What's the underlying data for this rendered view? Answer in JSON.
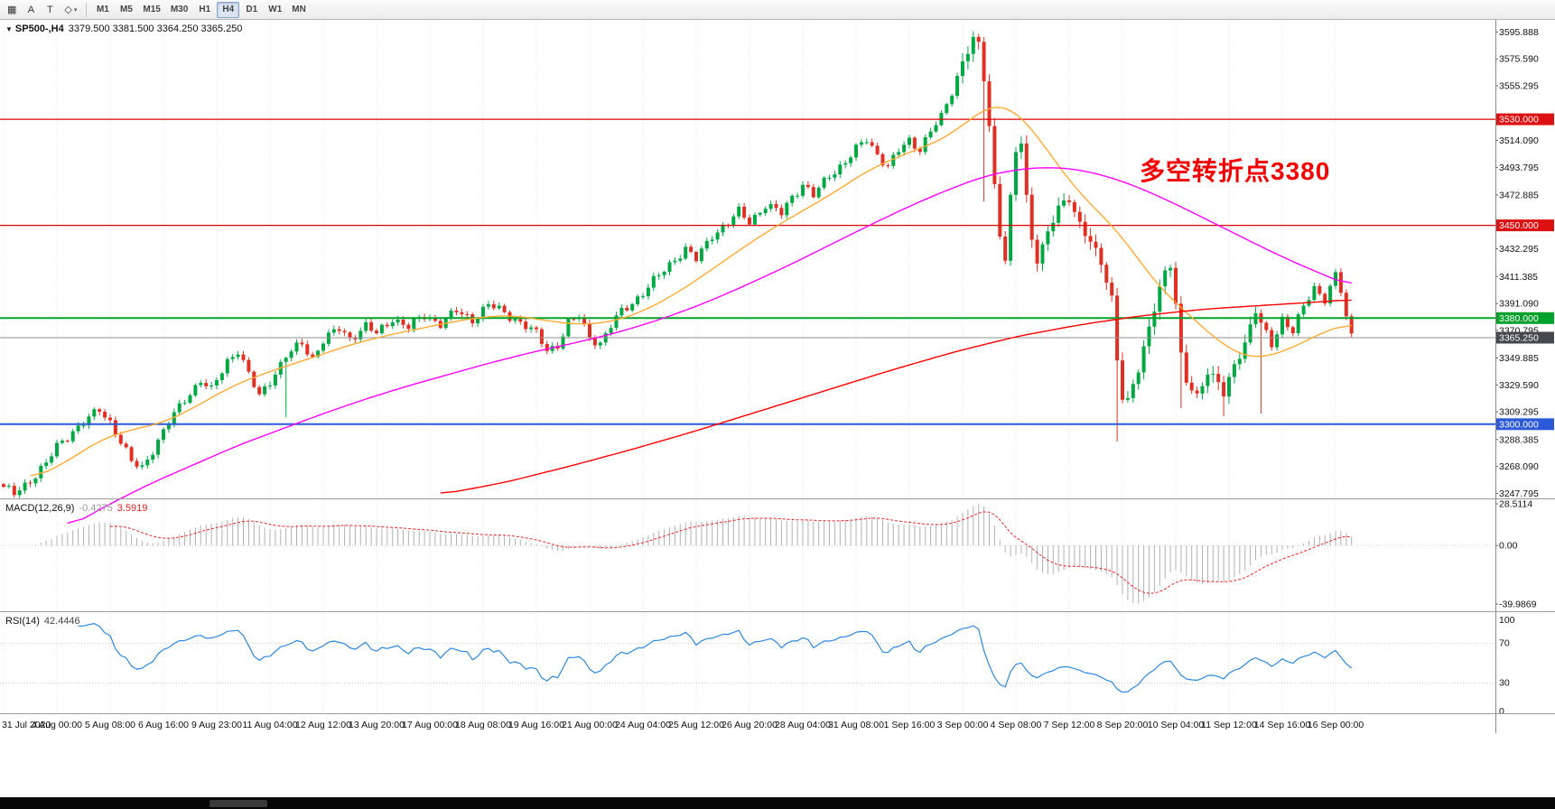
{
  "toolbar": {
    "icons": [
      {
        "name": "chart-grid-icon",
        "glyph": "▦"
      },
      {
        "name": "text-a-icon",
        "glyph": "A"
      },
      {
        "name": "text-frame-icon",
        "glyph": "T"
      },
      {
        "name": "draw-tools-icon",
        "glyph": "◇",
        "caret": "▾"
      }
    ],
    "timeframes": [
      "M1",
      "M5",
      "M15",
      "M30",
      "H1",
      "H4",
      "D1",
      "W1",
      "MN"
    ],
    "active_timeframe": "H4"
  },
  "chart": {
    "collapse_arrow": "▼",
    "symbol_label": "SP500-,H4",
    "ohlc_label": "3379.500 3381.500 3364.250 3365.250",
    "annotation": {
      "text": "多空转折点3380",
      "color": "#f20000"
    },
    "price_ticks": [
      "3595.888",
      "3575.590",
      "3555.295",
      "3514.090",
      "3493.795",
      "3472.885",
      "3432.295",
      "3411.385",
      "3391.090",
      "3370.795",
      "3349.885",
      "3329.590",
      "3309.295",
      "3288.385",
      "3268.090",
      "3247.795"
    ],
    "badges": [
      {
        "label": "3530.000",
        "value": 3530.0,
        "bg": "#dd1111"
      },
      {
        "label": "3450.000",
        "value": 3450.0,
        "bg": "#dd1111"
      },
      {
        "label": "3380.000",
        "value": 3380.0,
        "bg": "#00a22a"
      },
      {
        "label": "3370.795",
        "value": 3370.795,
        "bg": null
      },
      {
        "label": "3365.250",
        "value": 3365.25,
        "bg": "#45494e"
      },
      {
        "label": "3300.000",
        "value": 3300.0,
        "bg": "#2b59d8"
      }
    ],
    "hlines": [
      {
        "value": 3530,
        "color": "#e00000",
        "width": 1.2
      },
      {
        "value": 3450,
        "color": "#e00000",
        "width": 1.2
      },
      {
        "value": 3380,
        "color": "#00a22a",
        "width": 2
      },
      {
        "value": 3365.25,
        "color": "#909090",
        "width": 1
      },
      {
        "value": 3300,
        "color": "#2b59d8",
        "width": 2
      }
    ],
    "time_labels": [
      "31 Jul 2020",
      "4 Aug 00:00",
      "5 Aug 08:00",
      "6 Aug 16:00",
      "9 Aug 23:00",
      "11 Aug 04:00",
      "12 Aug 12:00",
      "13 Aug 20:00",
      "17 Aug 00:00",
      "18 Aug 08:00",
      "19 Aug 16:00",
      "21 Aug 00:00",
      "24 Aug 04:00",
      "25 Aug 12:00",
      "26 Aug 20:00",
      "28 Aug 04:00",
      "31 Aug 08:00",
      "1 Sep 16:00",
      "3 Sep 00:00",
      "4 Sep 08:00",
      "7 Sep 12:00",
      "8 Sep 20:00",
      "10 Sep 04:00",
      "11 Sep 12:00",
      "14 Sep 16:00",
      "16 Sep 00:00"
    ]
  },
  "macd": {
    "title": "MACD(12,26,9)",
    "value": "-0.4275",
    "signal_value": "3.5919",
    "axis_labels": [
      "28.5114",
      "0.00",
      "-39.9869"
    ],
    "axis_values": [
      28.5114,
      0,
      -39.9869
    ]
  },
  "rsi": {
    "title": "RSI(14)",
    "value": "42.4446",
    "axis_labels": [
      "100",
      "70",
      "30",
      "0"
    ],
    "axis_values": [
      100,
      70,
      30,
      0
    ],
    "levels": [
      70,
      30
    ]
  },
  "chart_data": {
    "type": "candlestick",
    "symbol": "SP500-",
    "timeframe": "H4",
    "visible_ohlc": {
      "open": 3379.5,
      "high": 3381.5,
      "low": 3364.25,
      "close": 3365.25
    },
    "bars": 254,
    "price_range": [
      3244,
      3605
    ],
    "key_levels": [
      3530,
      3450,
      3380,
      3300
    ],
    "close_anchors": [
      [
        0,
        3252
      ],
      [
        2,
        3247
      ],
      [
        5,
        3258
      ],
      [
        8,
        3270
      ],
      [
        10,
        3283
      ],
      [
        13,
        3295
      ],
      [
        16,
        3304
      ],
      [
        18,
        3311
      ],
      [
        20,
        3302
      ],
      [
        22,
        3287
      ],
      [
        24,
        3271
      ],
      [
        26,
        3267
      ],
      [
        28,
        3281
      ],
      [
        31,
        3301
      ],
      [
        34,
        3319
      ],
      [
        37,
        3333
      ],
      [
        39,
        3325
      ],
      [
        42,
        3348
      ],
      [
        44,
        3356
      ],
      [
        46,
        3337
      ],
      [
        48,
        3321
      ],
      [
        50,
        3333
      ],
      [
        53,
        3351
      ],
      [
        56,
        3361
      ],
      [
        58,
        3350
      ],
      [
        60,
        3363
      ],
      [
        63,
        3372
      ],
      [
        65,
        3365
      ],
      [
        68,
        3374
      ],
      [
        70,
        3368
      ],
      [
        73,
        3380
      ],
      [
        76,
        3373
      ],
      [
        79,
        3382
      ],
      [
        82,
        3376
      ],
      [
        85,
        3385
      ],
      [
        88,
        3379
      ],
      [
        91,
        3390
      ],
      [
        94,
        3384
      ],
      [
        97,
        3377
      ],
      [
        100,
        3368
      ],
      [
        102,
        3356
      ],
      [
        104,
        3360
      ],
      [
        106,
        3376
      ],
      [
        108,
        3381
      ],
      [
        110,
        3366
      ],
      [
        112,
        3361
      ],
      [
        114,
        3374
      ],
      [
        116,
        3385
      ],
      [
        118,
        3392
      ],
      [
        120,
        3399
      ],
      [
        123,
        3412
      ],
      [
        126,
        3425
      ],
      [
        128,
        3432
      ],
      [
        130,
        3424
      ],
      [
        133,
        3443
      ],
      [
        136,
        3452
      ],
      [
        138,
        3460
      ],
      [
        140,
        3453
      ],
      [
        143,
        3465
      ],
      [
        146,
        3459
      ],
      [
        148,
        3472
      ],
      [
        150,
        3481
      ],
      [
        152,
        3472
      ],
      [
        155,
        3488
      ],
      [
        158,
        3498
      ],
      [
        160,
        3507
      ],
      [
        162,
        3515
      ],
      [
        164,
        3504
      ],
      [
        166,
        3494
      ],
      [
        168,
        3506
      ],
      [
        170,
        3514
      ],
      [
        172,
        3508
      ],
      [
        174,
        3521
      ],
      [
        176,
        3531
      ],
      [
        178,
        3551
      ],
      [
        180,
        3574
      ],
      [
        182,
        3590
      ],
      [
        183,
        3585
      ],
      [
        184,
        3560
      ],
      [
        185,
        3525
      ],
      [
        186,
        3480
      ],
      [
        187,
        3445
      ],
      [
        188,
        3425
      ],
      [
        189,
        3470
      ],
      [
        190,
        3505
      ],
      [
        191,
        3512
      ],
      [
        192,
        3470
      ],
      [
        193,
        3440
      ],
      [
        194,
        3425
      ],
      [
        196,
        3445
      ],
      [
        198,
        3462
      ],
      [
        200,
        3470
      ],
      [
        202,
        3452
      ],
      [
        204,
        3438
      ],
      [
        206,
        3420
      ],
      [
        208,
        3395
      ],
      [
        209,
        3350
      ],
      [
        210,
        3322
      ],
      [
        211,
        3318
      ],
      [
        213,
        3340
      ],
      [
        215,
        3372
      ],
      [
        217,
        3405
      ],
      [
        218,
        3415
      ],
      [
        219,
        3420
      ],
      [
        220,
        3390
      ],
      [
        221,
        3350
      ],
      [
        222,
        3332
      ],
      [
        224,
        3322
      ],
      [
        226,
        3340
      ],
      [
        228,
        3330
      ],
      [
        229,
        3322
      ],
      [
        231,
        3345
      ],
      [
        233,
        3362
      ],
      [
        235,
        3385
      ],
      [
        236,
        3375
      ],
      [
        238,
        3360
      ],
      [
        240,
        3380
      ],
      [
        242,
        3370
      ],
      [
        244,
        3388
      ],
      [
        246,
        3403
      ],
      [
        248,
        3395
      ],
      [
        250,
        3412
      ],
      [
        251,
        3400
      ],
      [
        252,
        3380
      ],
      [
        253,
        3366
      ]
    ],
    "noise": [
      2.6,
      1.6
    ],
    "wick_overrides": [
      {
        "i": 53,
        "low": 3305
      },
      {
        "i": 182,
        "high": 3596
      },
      {
        "i": 184,
        "low": 3468
      },
      {
        "i": 209,
        "low": 3287
      },
      {
        "i": 221,
        "low": 3312
      },
      {
        "i": 229,
        "low": 3306
      },
      {
        "i": 236,
        "low": 3308
      }
    ],
    "vol_zones": [
      {
        "from": 180,
        "to": 236,
        "mult": 2.2
      }
    ],
    "ma_series": [
      {
        "name": "ma-fast-orange",
        "color": "#ffaa33",
        "width": 1.4,
        "anchors": [
          [
            5,
            3258
          ],
          [
            12,
            3272
          ],
          [
            18,
            3288
          ],
          [
            24,
            3296
          ],
          [
            30,
            3301
          ],
          [
            36,
            3313
          ],
          [
            42,
            3327
          ],
          [
            48,
            3337
          ],
          [
            54,
            3345
          ],
          [
            60,
            3353
          ],
          [
            66,
            3361
          ],
          [
            72,
            3367
          ],
          [
            78,
            3372
          ],
          [
            84,
            3377
          ],
          [
            90,
            3381
          ],
          [
            96,
            3382
          ],
          [
            102,
            3378
          ],
          [
            108,
            3375
          ],
          [
            114,
            3377
          ],
          [
            120,
            3385
          ],
          [
            126,
            3398
          ],
          [
            132,
            3414
          ],
          [
            138,
            3431
          ],
          [
            144,
            3447
          ],
          [
            150,
            3461
          ],
          [
            156,
            3475
          ],
          [
            162,
            3491
          ],
          [
            168,
            3502
          ],
          [
            174,
            3511
          ],
          [
            178,
            3519
          ],
          [
            182,
            3532
          ],
          [
            185,
            3540
          ],
          [
            188,
            3541
          ],
          [
            191,
            3532
          ],
          [
            194,
            3518
          ],
          [
            197,
            3500
          ],
          [
            200,
            3484
          ],
          [
            203,
            3470
          ],
          [
            206,
            3458
          ],
          [
            209,
            3446
          ],
          [
            212,
            3430
          ],
          [
            215,
            3413
          ],
          [
            218,
            3399
          ],
          [
            221,
            3388
          ],
          [
            224,
            3377
          ],
          [
            227,
            3366
          ],
          [
            230,
            3357
          ],
          [
            233,
            3351
          ],
          [
            236,
            3350
          ],
          [
            239,
            3353
          ],
          [
            242,
            3358
          ],
          [
            245,
            3364
          ],
          [
            248,
            3370
          ],
          [
            251,
            3374
          ],
          [
            253,
            3376
          ]
        ]
      },
      {
        "name": "ma-mid-magenta",
        "color": "#ff00ff",
        "width": 1.4,
        "anchors": [
          [
            12,
            3222
          ],
          [
            20,
            3240
          ],
          [
            28,
            3256
          ],
          [
            36,
            3270
          ],
          [
            44,
            3284
          ],
          [
            52,
            3296
          ],
          [
            60,
            3308
          ],
          [
            68,
            3319
          ],
          [
            76,
            3329
          ],
          [
            84,
            3338
          ],
          [
            92,
            3347
          ],
          [
            100,
            3355
          ],
          [
            108,
            3362
          ],
          [
            116,
            3370
          ],
          [
            124,
            3380
          ],
          [
            132,
            3392
          ],
          [
            140,
            3406
          ],
          [
            148,
            3421
          ],
          [
            156,
            3437
          ],
          [
            164,
            3453
          ],
          [
            172,
            3468
          ],
          [
            178,
            3478
          ],
          [
            184,
            3487
          ],
          [
            190,
            3492
          ],
          [
            196,
            3494
          ],
          [
            202,
            3492
          ],
          [
            208,
            3486
          ],
          [
            214,
            3477
          ],
          [
            220,
            3466
          ],
          [
            226,
            3454
          ],
          [
            232,
            3442
          ],
          [
            238,
            3430
          ],
          [
            244,
            3419
          ],
          [
            250,
            3409
          ],
          [
            253,
            3404
          ]
        ]
      },
      {
        "name": "ma-slow-red",
        "color": "#ff0000",
        "width": 1.4,
        "anchors": [
          [
            82,
            3247
          ],
          [
            94,
            3256
          ],
          [
            106,
            3268
          ],
          [
            118,
            3281
          ],
          [
            130,
            3295
          ],
          [
            142,
            3310
          ],
          [
            154,
            3325
          ],
          [
            166,
            3340
          ],
          [
            178,
            3354
          ],
          [
            190,
            3366
          ],
          [
            202,
            3375
          ],
          [
            214,
            3382
          ],
          [
            226,
            3387
          ],
          [
            238,
            3390
          ],
          [
            246,
            3392
          ],
          [
            253,
            3394
          ]
        ]
      }
    ],
    "indicators": {
      "macd": {
        "fast": 12,
        "slow": 26,
        "signal": 9,
        "current": -0.4275,
        "signal_current": 3.5919,
        "axis_max": 28.5114,
        "axis_min": -39.9869
      },
      "rsi": {
        "period": 14,
        "current": 42.4446,
        "levels": [
          70,
          30
        ]
      }
    }
  },
  "colors": {
    "up": "#00a843",
    "down": "#e03024",
    "grid": "#e6e6e6",
    "hist": "#b0b0b0",
    "macd_signal": "#ee2222",
    "rsi_line": "#2e86de",
    "sep": "#9a9a9a",
    "axis_text": "#111111"
  }
}
